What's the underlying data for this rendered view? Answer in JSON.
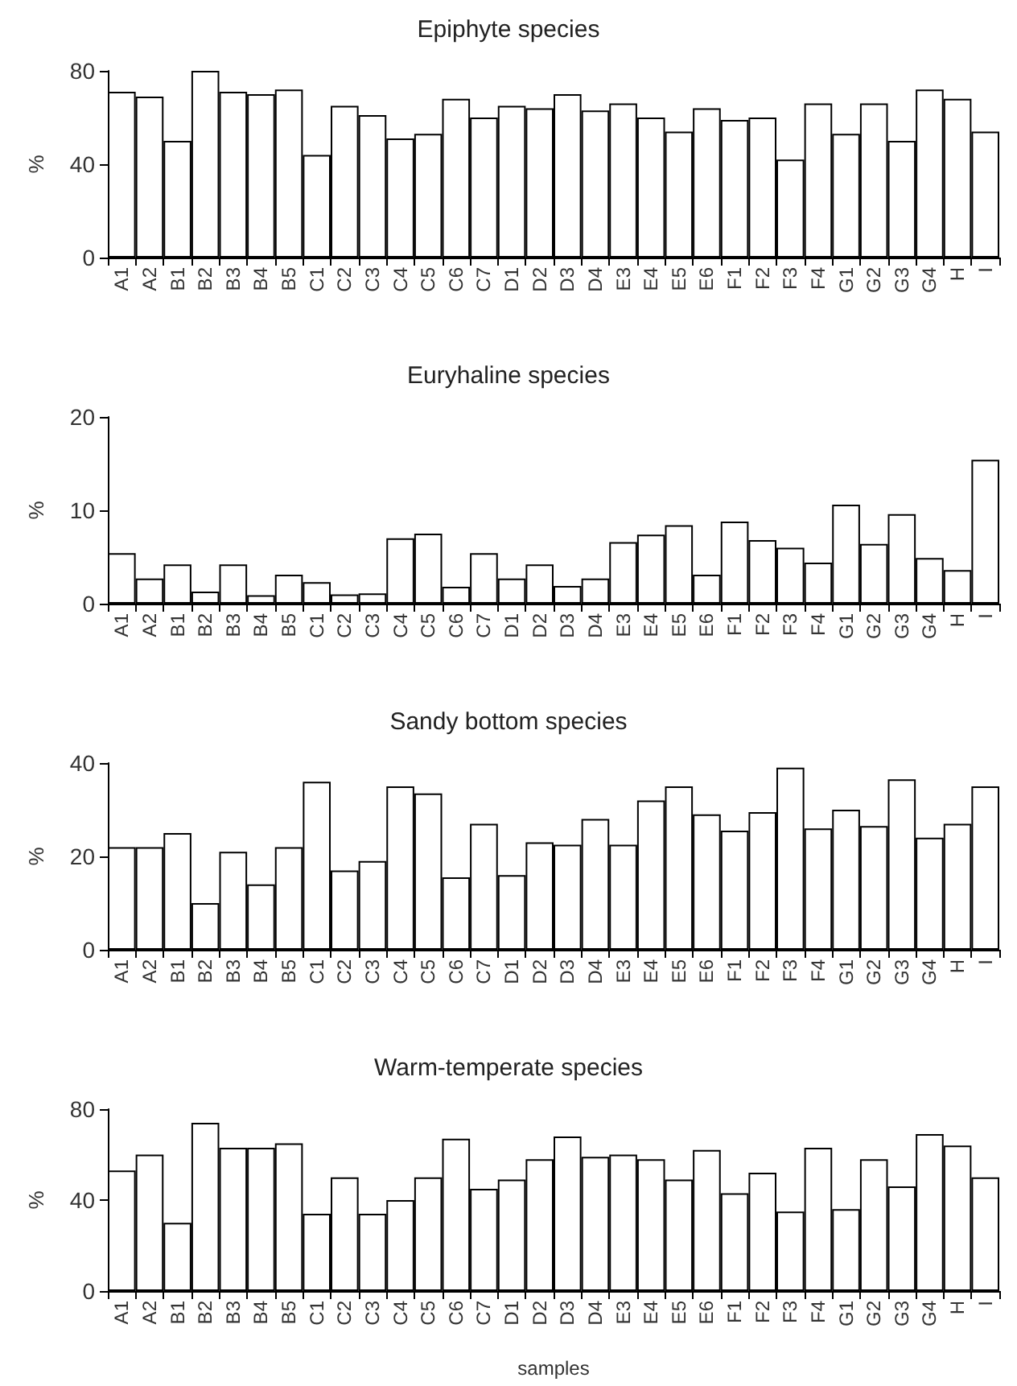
{
  "chart_data": [
    {
      "type": "bar",
      "title": "Epiphyte species",
      "ylabel": "%",
      "categories": [
        "A1",
        "A2",
        "B1",
        "B2",
        "B3",
        "B4",
        "B5",
        "C1",
        "C2",
        "C3",
        "C4",
        "C5",
        "C6",
        "C7",
        "D1",
        "D2",
        "D3",
        "D4",
        "E3",
        "E4",
        "E5",
        "E6",
        "F1",
        "F2",
        "F3",
        "F4",
        "G1",
        "G2",
        "G3",
        "G4",
        "H",
        "I"
      ],
      "series": [
        {
          "color": "#ffffff",
          "values": [
            71,
            69,
            50,
            80,
            71,
            70,
            72,
            44,
            65,
            61,
            51,
            53,
            68,
            60,
            65,
            64,
            70,
            63,
            66,
            60,
            54,
            64,
            59,
            60,
            42,
            66,
            53,
            66,
            50,
            72,
            68,
            54
          ]
        }
      ],
      "ylim": [
        0,
        80
      ],
      "yticks": [
        0,
        40,
        80
      ],
      "grid": false
    },
    {
      "type": "bar",
      "title": "Euryhaline species",
      "ylabel": "%",
      "categories": [
        "A1",
        "A2",
        "B1",
        "B2",
        "B3",
        "B4",
        "B5",
        "C1",
        "C2",
        "C3",
        "C4",
        "C5",
        "C6",
        "C7",
        "D1",
        "D2",
        "D3",
        "D4",
        "E3",
        "E4",
        "E5",
        "E6",
        "F1",
        "F2",
        "F3",
        "F4",
        "G1",
        "G2",
        "G3",
        "G4",
        "H",
        "I"
      ],
      "series": [
        {
          "color": "#ffffff",
          "values": [
            5.4,
            2.7,
            4.2,
            1.3,
            4.2,
            0.9,
            3.1,
            2.3,
            1.0,
            1.1,
            7.0,
            7.5,
            1.8,
            5.4,
            2.7,
            4.2,
            1.9,
            2.7,
            6.6,
            7.4,
            8.4,
            3.1,
            8.8,
            6.8,
            6.0,
            4.4,
            10.6,
            6.4,
            9.6,
            4.9,
            3.6,
            15.4
          ]
        }
      ],
      "ylim": [
        0,
        20
      ],
      "yticks": [
        0,
        10,
        20
      ],
      "grid": false
    },
    {
      "type": "bar",
      "title": "Sandy bottom species",
      "ylabel": "%",
      "categories": [
        "A1",
        "A2",
        "B1",
        "B2",
        "B3",
        "B4",
        "B5",
        "C1",
        "C2",
        "C3",
        "C4",
        "C5",
        "C6",
        "C7",
        "D1",
        "D2",
        "D3",
        "D4",
        "E3",
        "E4",
        "E5",
        "E6",
        "F1",
        "F2",
        "F3",
        "F4",
        "G1",
        "G2",
        "G3",
        "G4",
        "H",
        "I"
      ],
      "series": [
        {
          "color": "#ffffff",
          "values": [
            22,
            22,
            25,
            10,
            21,
            14,
            22,
            36,
            17,
            19,
            35,
            33.5,
            15.5,
            27,
            16,
            23,
            22.5,
            28,
            22.5,
            32,
            35,
            29,
            25.5,
            29.5,
            39,
            26,
            30,
            26.5,
            36.5,
            24,
            27,
            35
          ]
        }
      ],
      "ylim": [
        0,
        40
      ],
      "yticks": [
        0,
        20,
        40
      ],
      "grid": false
    },
    {
      "type": "bar",
      "title": "Warm-temperate species",
      "xlabel": "samples",
      "ylabel": "%",
      "categories": [
        "A1",
        "A2",
        "B1",
        "B2",
        "B3",
        "B4",
        "B5",
        "C1",
        "C2",
        "C3",
        "C4",
        "C5",
        "C6",
        "C7",
        "D1",
        "D2",
        "D3",
        "D4",
        "E3",
        "E4",
        "E5",
        "E6",
        "F1",
        "F2",
        "F3",
        "F4",
        "G1",
        "G2",
        "G3",
        "G4",
        "H",
        "I"
      ],
      "series": [
        {
          "color": "#ffffff",
          "values": [
            53,
            60,
            30,
            74,
            63,
            63,
            65,
            34,
            50,
            34,
            40,
            50,
            67,
            45,
            49,
            58,
            68,
            59,
            60,
            58,
            49,
            62,
            43,
            52,
            35,
            63,
            36,
            58,
            46,
            69,
            64,
            50
          ]
        }
      ],
      "ylim": [
        0,
        80
      ],
      "yticks": [
        0,
        40,
        80
      ],
      "grid": false
    }
  ]
}
